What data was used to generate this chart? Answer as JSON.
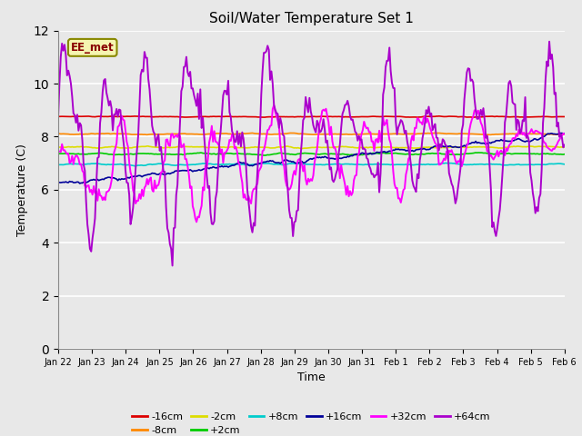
{
  "title": "Soil/Water Temperature Set 1",
  "xlabel": "Time",
  "ylabel": "Temperature (C)",
  "ylim": [
    0,
    12
  ],
  "yticks": [
    0,
    2,
    4,
    6,
    8,
    10,
    12
  ],
  "x_labels": [
    "Jan 22",
    "Jan 23",
    "Jan 24",
    "Jan 25",
    "Jan 26",
    "Jan 27",
    "Jan 28",
    "Jan 29",
    "Jan 30",
    "Jan 31",
    "Feb 1",
    "Feb 2",
    "Feb 3",
    "Feb 4",
    "Feb 5",
    "Feb 6"
  ],
  "n_points": 400,
  "annotation_text": "EE_met",
  "annotation_box_facecolor": "#f5f5b0",
  "annotation_box_edgecolor": "#888800",
  "annotation_text_color": "#880000",
  "background_color": "#e8e8e8",
  "series_colors": {
    "-16cm": "#dd0000",
    "-8cm": "#ff8800",
    "-2cm": "#dddd00",
    "+2cm": "#00cc00",
    "+8cm": "#00cccc",
    "+16cm": "#000099",
    "+32cm": "#ff00ff",
    "+64cm": "#aa00cc"
  },
  "legend_order": [
    "-16cm",
    "-8cm",
    "-2cm",
    "+2cm",
    "+8cm",
    "+16cm",
    "+32cm",
    "+64cm"
  ]
}
